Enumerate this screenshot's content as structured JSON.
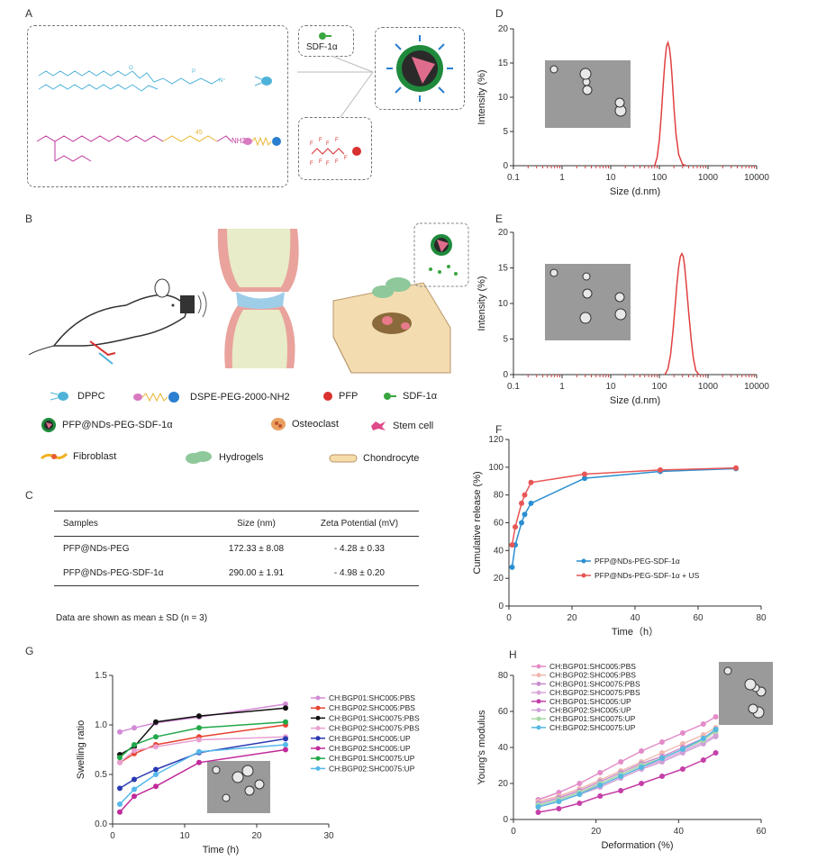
{
  "panel_labels": {
    "a": "A",
    "b": "B",
    "c": "C",
    "d": "D",
    "e": "E",
    "f": "F",
    "g": "G",
    "h": "H"
  },
  "panel_a": {
    "sdf_label": "SDF-1α",
    "nh2_label": "NH2",
    "peg_n": "45",
    "colors": {
      "dppc": "#4fb3d9",
      "dspe": "#c0399c",
      "peg": "#e8b430",
      "sdf": "#3aa640",
      "pfp": "#d93030"
    }
  },
  "legend": {
    "dppc": "DPPC",
    "dspe": "DSPE-PEG-2000-NH2",
    "pfp": "PFP",
    "sdf": "SDF-1α",
    "nanodroplet": "PFP@NDs-PEG-SDF-1α",
    "osteoclast": "Osteoclast",
    "stem_cell": "Stem cell",
    "fibroblast": "Fibroblast",
    "hydrogels": "Hydrogels",
    "chondrocyte": "Chondrocyte"
  },
  "table_c": {
    "headers": [
      "Samples",
      "Size (nm)",
      "Zeta Potential (mV)"
    ],
    "rows": [
      [
        "PFP@NDs-PEG",
        "172.33 ± 8.08",
        "- 4.28 ± 0.33"
      ],
      [
        "PFP@NDs-PEG-SDF-1α",
        "290.00 ± 1.91",
        "- 4.98 ± 0.20"
      ]
    ],
    "footnote": "Data are shown as mean ± SD (n = 3)"
  },
  "chart_data": [
    {
      "id": "D",
      "type": "line",
      "xscale": "log",
      "xlabel": "Size (d.nm)",
      "ylabel": "Intensity (%)",
      "xlim": [
        0.1,
        10000
      ],
      "ylim": [
        0,
        20
      ],
      "xticks": [
        "0.1",
        "1",
        "10",
        "100",
        "1000",
        "10000"
      ],
      "yticks": [
        0,
        5,
        10,
        15,
        20
      ],
      "series": [
        {
          "color": "#e04040",
          "x": [
            80,
            90,
            100,
            110,
            120,
            130,
            140,
            150,
            160,
            170,
            180,
            190,
            200,
            220,
            250,
            300,
            350
          ],
          "y": [
            0,
            1.2,
            3.8,
            7.6,
            11.8,
            15.2,
            17.4,
            18.0,
            17.3,
            15.8,
            13.6,
            11.0,
            8.4,
            4.6,
            1.6,
            0.2,
            0
          ]
        }
      ]
    },
    {
      "id": "E",
      "type": "line",
      "xscale": "log",
      "xlabel": "Size (d.nm)",
      "ylabel": "Intensity (%)",
      "xlim": [
        0.1,
        10000
      ],
      "ylim": [
        0,
        20
      ],
      "xticks": [
        "0.1",
        "1",
        "10",
        "100",
        "1000",
        "10000"
      ],
      "yticks": [
        0,
        5,
        10,
        15,
        20
      ],
      "series": [
        {
          "color": "#e04040",
          "x": [
            130,
            150,
            170,
            190,
            210,
            230,
            250,
            270,
            290,
            310,
            330,
            360,
            400,
            450,
            500,
            560,
            650
          ],
          "y": [
            0,
            0.8,
            2.8,
            6,
            9.5,
            12.8,
            15.2,
            16.6,
            17.0,
            16.6,
            15.3,
            12.5,
            8.8,
            5.0,
            2.3,
            0.6,
            0
          ]
        }
      ]
    },
    {
      "id": "F",
      "type": "line",
      "xlabel": "Time（h）",
      "ylabel": "Cumulative release (%)",
      "xlim": [
        0,
        80
      ],
      "ylim": [
        0,
        120
      ],
      "xticks": [
        0,
        20,
        40,
        60,
        80
      ],
      "yticks": [
        0,
        20,
        40,
        60,
        80,
        100,
        120
      ],
      "series": [
        {
          "name": "PFP@NDs-PEG-SDF-1α",
          "color": "#2a8fd1",
          "x": [
            1,
            2,
            4,
            5,
            7,
            24,
            48,
            72
          ],
          "y": [
            28,
            44,
            60,
            66,
            74,
            92,
            97,
            99
          ]
        },
        {
          "name": "PFP@NDs-PEG-SDF-1α + US",
          "color": "#e85656",
          "x": [
            1,
            2,
            4,
            5,
            7,
            24,
            48,
            72
          ],
          "y": [
            44,
            57,
            74,
            80,
            89,
            95,
            98,
            99.5
          ]
        }
      ]
    },
    {
      "id": "G",
      "type": "line",
      "xlabel": "Time (h)",
      "ylabel": "Swelling ratio",
      "xlim": [
        0,
        30
      ],
      "ylim": [
        0,
        1.5
      ],
      "xticks": [
        0,
        10,
        20,
        30
      ],
      "yticks": [
        0.0,
        0.5,
        1.0,
        1.5
      ],
      "series": [
        {
          "name": "CH:BGP01:SHC005:PBS",
          "color": "#d28ad6",
          "x": [
            1,
            3,
            6,
            12,
            24
          ],
          "y": [
            0.93,
            0.97,
            1.02,
            1.08,
            1.21
          ]
        },
        {
          "name": "CH:BGP02:SHC005:PBS",
          "color": "#e8432e",
          "x": [
            1,
            3,
            6,
            12,
            24
          ],
          "y": [
            0.62,
            0.71,
            0.8,
            0.88,
            1.0
          ]
        },
        {
          "name": "CH:BGP01:SHC0075:PBS",
          "color": "#111111",
          "x": [
            1,
            3,
            6,
            12,
            24
          ],
          "y": [
            0.7,
            0.78,
            1.03,
            1.09,
            1.17
          ]
        },
        {
          "name": "CH:BGP02:SHC0075:PBS",
          "color": "#e8a0d0",
          "x": [
            1,
            3,
            6,
            12,
            24
          ],
          "y": [
            0.62,
            0.74,
            0.78,
            0.85,
            0.88
          ]
        },
        {
          "name": "CH:BGP01:SHC005:UP",
          "color": "#2a3ab0",
          "x": [
            1,
            3,
            6,
            12,
            24
          ],
          "y": [
            0.36,
            0.45,
            0.55,
            0.72,
            0.86
          ]
        },
        {
          "name": "CH:BGP02:SHC005:UP",
          "color": "#c12a9a",
          "x": [
            1,
            3,
            6,
            12,
            24
          ],
          "y": [
            0.12,
            0.28,
            0.38,
            0.62,
            0.75
          ]
        },
        {
          "name": "CH:BGP01:SHC0075:UP",
          "color": "#21a84a",
          "x": [
            1,
            3,
            6,
            12,
            24
          ],
          "y": [
            0.67,
            0.8,
            0.88,
            0.97,
            1.03
          ]
        },
        {
          "name": "CH:BGP02:SHC0075:UP",
          "color": "#55b8ea",
          "x": [
            1,
            3,
            6,
            12,
            24
          ],
          "y": [
            0.2,
            0.35,
            0.5,
            0.73,
            0.8
          ]
        }
      ]
    },
    {
      "id": "H",
      "type": "line",
      "xlabel": "Deformation (%)",
      "ylabel": "Young's modulus",
      "xlim": [
        0,
        60
      ],
      "ylim": [
        0,
        80
      ],
      "xticks": [
        0,
        20,
        40,
        60
      ],
      "yticks": [
        0,
        20,
        40,
        60,
        80
      ],
      "series": [
        {
          "name": "CH:BGP01:SHC005:PBS",
          "color": "#e38bc8",
          "x": [
            6,
            11,
            16,
            21,
            26,
            31,
            36,
            41,
            46,
            49
          ],
          "y": [
            11,
            15,
            20,
            26,
            32,
            38,
            43,
            48,
            53,
            57
          ]
        },
        {
          "name": "CH:BGP02:SHC005:PBS",
          "color": "#f0b8b0",
          "x": [
            6,
            11,
            16,
            21,
            26,
            31,
            36,
            41,
            46,
            49
          ],
          "y": [
            10,
            13,
            17,
            22,
            27,
            32,
            37,
            42,
            47,
            51
          ]
        },
        {
          "name": "CH:BGP01:SHC0075:PBS",
          "color": "#c98fce",
          "x": [
            6,
            11,
            16,
            21,
            26,
            31,
            36,
            41,
            46,
            49
          ],
          "y": [
            9,
            12,
            16,
            21,
            26,
            31,
            35,
            40,
            45,
            50
          ]
        },
        {
          "name": "CH:BGP02:SHC0075:PBS",
          "color": "#d8a8d8",
          "x": [
            6,
            11,
            16,
            21,
            26,
            31,
            36,
            41,
            46,
            49
          ],
          "y": [
            8,
            11,
            15,
            19,
            24,
            29,
            33,
            38,
            43,
            47
          ]
        },
        {
          "name": "CH:BGP01:SHC005:UP",
          "color": "#c53fa8",
          "x": [
            6,
            11,
            16,
            21,
            26,
            31,
            36,
            41,
            46,
            49
          ],
          "y": [
            4,
            6,
            9,
            13,
            16,
            20,
            24,
            28,
            33,
            37
          ]
        },
        {
          "name": "CH:BGP02:SHC005:UP",
          "color": "#d0a0d8",
          "x": [
            6,
            11,
            16,
            21,
            26,
            31,
            36,
            41,
            46,
            49
          ],
          "y": [
            7,
            10,
            14,
            18,
            23,
            28,
            32,
            37,
            42,
            46
          ]
        },
        {
          "name": "CH:BGP01:SHC0075:UP",
          "color": "#a8d8a8",
          "x": [
            6,
            11,
            16,
            21,
            26,
            31,
            36,
            41,
            46,
            49
          ],
          "y": [
            8,
            11,
            15,
            20,
            25,
            30,
            34,
            39,
            44,
            49
          ]
        },
        {
          "name": "CH:BGP02:SHC0075:UP",
          "color": "#55b8e0",
          "x": [
            6,
            11,
            16,
            21,
            26,
            31,
            36,
            41,
            46,
            49
          ],
          "y": [
            7,
            10,
            14,
            19,
            24,
            29,
            34,
            39,
            45,
            50
          ]
        }
      ]
    }
  ]
}
